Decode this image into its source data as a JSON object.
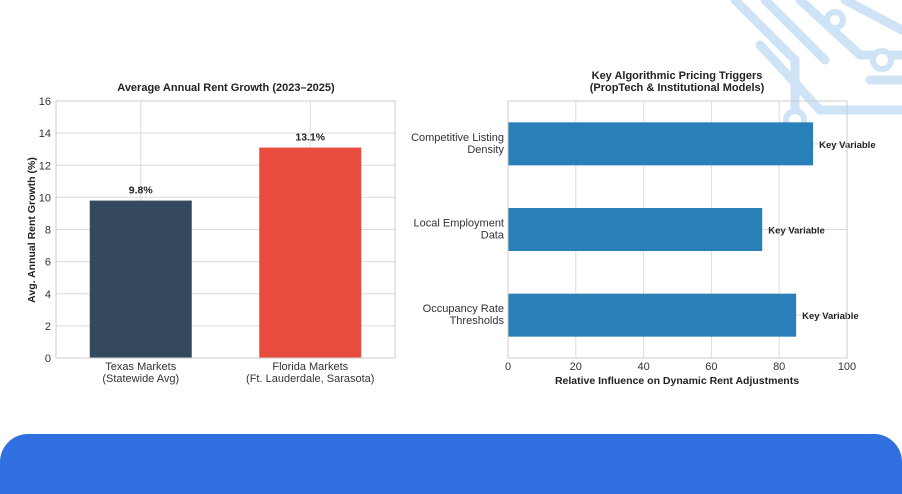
{
  "chart_data": [
    {
      "type": "bar",
      "title": "Average Annual Rent Growth (2023–2025)",
      "ylabel": "Avg. Annual Rent Growth (%)",
      "xlabel": "",
      "categories": [
        [
          "Texas Markets",
          "(Statewide Avg)"
        ],
        [
          "Florida Markets",
          "(Ft. Lauderdale, Sarasota)"
        ]
      ],
      "values": [
        9.8,
        13.1
      ],
      "data_labels": [
        "9.8%",
        "13.1%"
      ],
      "colors": [
        "#34495e",
        "#e74c3c"
      ],
      "ylim": [
        0,
        16
      ],
      "yticks": [
        0,
        2,
        4,
        6,
        8,
        10,
        12,
        14,
        16
      ],
      "grid": true
    },
    {
      "type": "bar",
      "orientation": "horizontal",
      "title": [
        "Key Algorithmic Pricing Triggers",
        "(PropTech & Institutional Models)"
      ],
      "xlabel": "Relative Influence on Dynamic Rent Adjustments",
      "ylabel": "",
      "categories": [
        [
          "Competitive Listing",
          "Density"
        ],
        [
          "Local Employment",
          "Data"
        ],
        [
          "Occupancy Rate",
          "Thresholds"
        ]
      ],
      "values": [
        90,
        75,
        85
      ],
      "data_labels": [
        "Key Variable",
        "Key Variable",
        "Key Variable"
      ],
      "colors": [
        "#2980b9"
      ],
      "xlim": [
        0,
        100
      ],
      "xticks": [
        0,
        20,
        40,
        60,
        80,
        100
      ],
      "grid": true
    }
  ],
  "colors": {
    "banner": "#2f6fe0",
    "decoration": "#cfe3f6"
  }
}
